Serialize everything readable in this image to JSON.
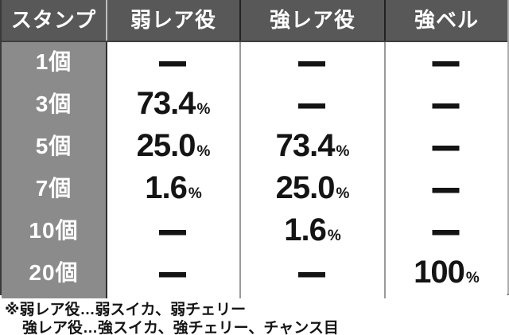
{
  "chart_data": {
    "type": "table",
    "title": "",
    "columns": [
      "スタンプ",
      "弱レア役",
      "強レア役",
      "強ベル"
    ],
    "rows": [
      [
        "1個",
        "—",
        "—",
        "—"
      ],
      [
        "3個",
        "73.4%",
        "—",
        "—"
      ],
      [
        "5個",
        "25.0%",
        "73.4%",
        "—"
      ],
      [
        "7個",
        "1.6%",
        "25.0%",
        "—"
      ],
      [
        "10個",
        "—",
        "1.6%",
        "—"
      ],
      [
        "20個",
        "—",
        "—",
        "100%"
      ]
    ],
    "notes": [
      "※弱レア役…弱スイカ、弱チェリー",
      "強レア役…強スイカ、強チェリー、チャンス目"
    ]
  },
  "table": {
    "headers": [
      "スタンプ",
      "弱レア役",
      "強レア役",
      "強ベル"
    ],
    "rows": [
      {
        "label": "1個",
        "cells": [
          {
            "num": "—",
            "unit": ""
          },
          {
            "num": "—",
            "unit": ""
          },
          {
            "num": "—",
            "unit": ""
          }
        ]
      },
      {
        "label": "3個",
        "cells": [
          {
            "num": "73.4",
            "unit": "%"
          },
          {
            "num": "—",
            "unit": ""
          },
          {
            "num": "—",
            "unit": ""
          }
        ]
      },
      {
        "label": "5個",
        "cells": [
          {
            "num": "25.0",
            "unit": "%"
          },
          {
            "num": "73.4",
            "unit": "%"
          },
          {
            "num": "—",
            "unit": ""
          }
        ]
      },
      {
        "label": "7個",
        "cells": [
          {
            "num": "1.6",
            "unit": "%"
          },
          {
            "num": "25.0",
            "unit": "%"
          },
          {
            "num": "—",
            "unit": ""
          }
        ]
      },
      {
        "label": "10個",
        "cells": [
          {
            "num": "—",
            "unit": ""
          },
          {
            "num": "1.6",
            "unit": "%"
          },
          {
            "num": "—",
            "unit": ""
          }
        ]
      },
      {
        "label": "20個",
        "cells": [
          {
            "num": "—",
            "unit": ""
          },
          {
            "num": "—",
            "unit": ""
          },
          {
            "num": "100",
            "unit": "%"
          }
        ]
      }
    ]
  },
  "footnotes": {
    "line1": "※弱レア役…弱スイカ、弱チェリー",
    "line2": "強レア役…強スイカ、強チェリー、チャンス目"
  },
  "colors": {
    "header_bg": "#585858",
    "label_bg": "#8b8b8b",
    "cell_bg": "#ffffff",
    "header_text": "#ffffff",
    "data_text": "#141414",
    "grid_line": "#3f3f3f"
  }
}
